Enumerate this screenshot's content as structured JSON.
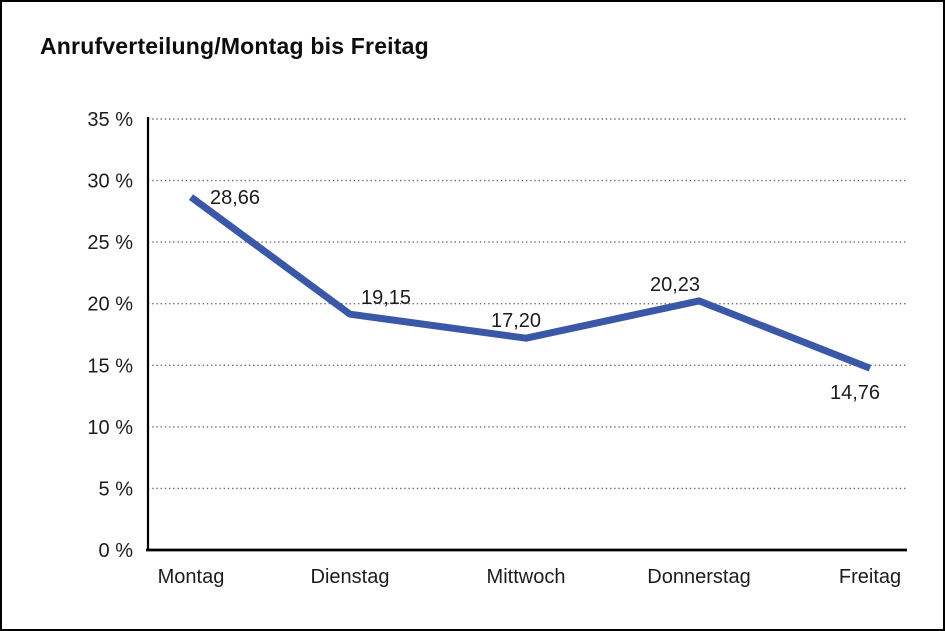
{
  "title": "Anrufverteilung/Montag bis Freitag",
  "colors": {
    "line": "#3A57A8",
    "grid": "#6e6e6e",
    "axis": "#000000",
    "text": "#1c1c1c",
    "background": "#ffffff",
    "frame": "#000000"
  },
  "chart_data": {
    "type": "line",
    "title": "Anrufverteilung/Montag bis Freitag",
    "categories": [
      "Montag",
      "Dienstag",
      "Mittwoch",
      "Donnerstag",
      "Freitag"
    ],
    "values": [
      28.66,
      19.15,
      17.2,
      20.23,
      14.76
    ],
    "value_labels": [
      "28,66",
      "19,15",
      "17,20",
      "20,23",
      "14,76"
    ],
    "series_name": "Anrufverteilung",
    "xlabel": "",
    "ylabel": "",
    "ylim": [
      0,
      35
    ],
    "ytick_step": 5,
    "ytick_labels": [
      "0 %",
      "5 %",
      "10 %",
      "15 %",
      "20 %",
      "25 %",
      "30 %",
      "35 %"
    ],
    "grid": "horizontal-dotted",
    "legend": "none",
    "line_color": "#3A57A8"
  }
}
